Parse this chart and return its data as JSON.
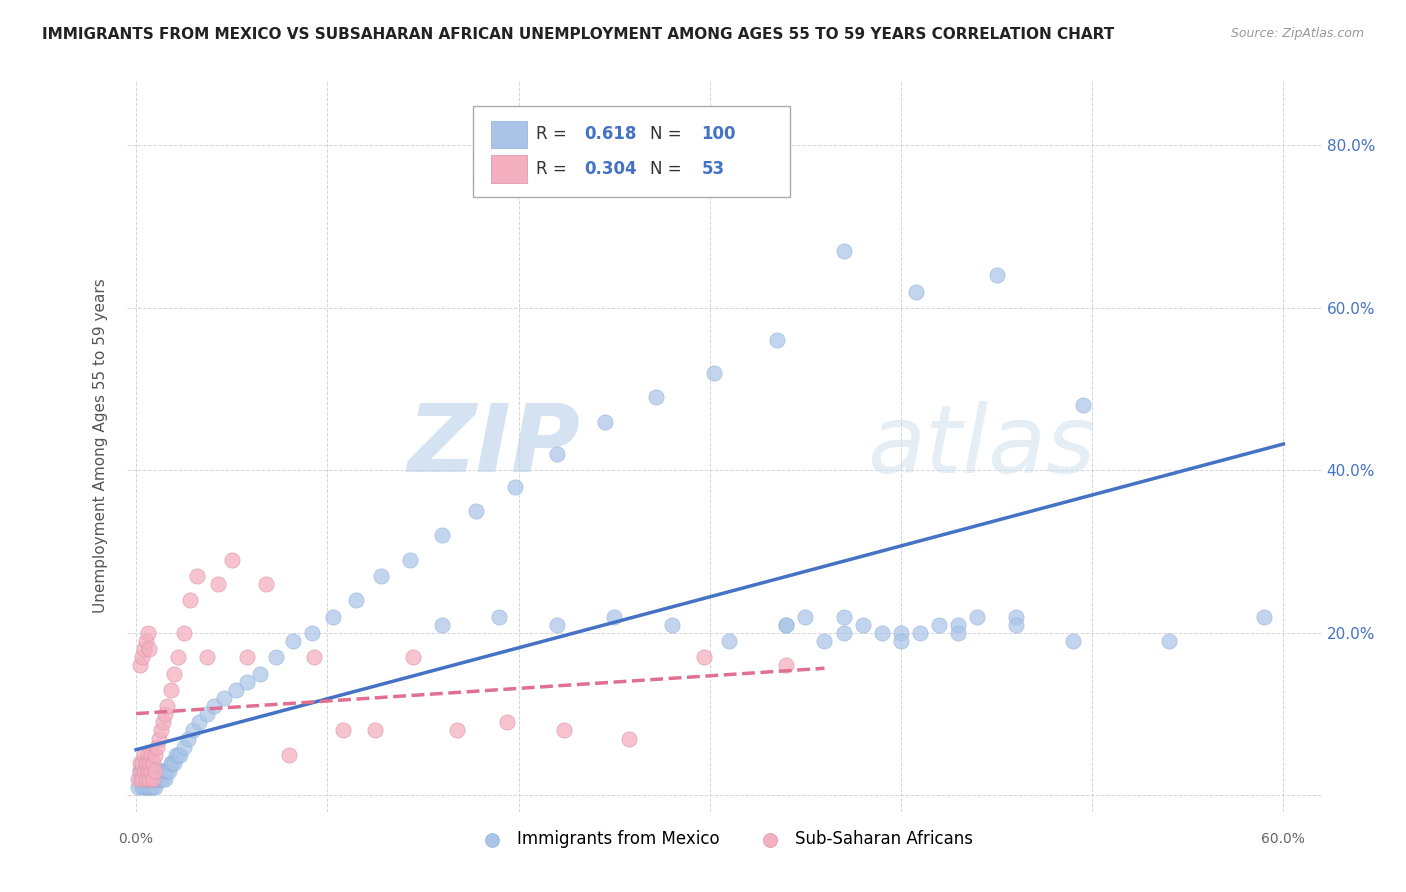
{
  "title": "IMMIGRANTS FROM MEXICO VS SUBSAHARAN AFRICAN UNEMPLOYMENT AMONG AGES 55 TO 59 YEARS CORRELATION CHART",
  "source": "Source: ZipAtlas.com",
  "ylabel": "Unemployment Among Ages 55 to 59 years",
  "xlim": [
    -0.005,
    0.62
  ],
  "ylim": [
    -0.02,
    0.88
  ],
  "xticks": [
    0.0,
    0.1,
    0.2,
    0.3,
    0.4,
    0.5,
    0.6
  ],
  "xticklabels": [
    "0.0%",
    "",
    "",
    "",
    "",
    "",
    "60.0%"
  ],
  "yticks": [
    0.0,
    0.2,
    0.4,
    0.6,
    0.8
  ],
  "yticklabels": [
    "",
    "20.0%",
    "40.0%",
    "60.0%",
    "80.0%"
  ],
  "legend_R1": "0.618",
  "legend_N1": "100",
  "legend_R2": "0.304",
  "legend_N2": "53",
  "color_blue": "#aac4e8",
  "color_pink": "#f4afc0",
  "color_blue_text": "#4472c4",
  "line_blue": "#4472c4",
  "line_pink": "#e07090",
  "watermark_zip": "ZIP",
  "watermark_atlas": "atlas",
  "watermark_color": "#d0e4f5",
  "watermark_color2": "#c8d8e8",
  "background_color": "#ffffff",
  "grid_color": "#cccccc",
  "blue_x": [
    0.001,
    0.002,
    0.002,
    0.003,
    0.003,
    0.003,
    0.004,
    0.004,
    0.004,
    0.005,
    0.005,
    0.005,
    0.006,
    0.006,
    0.006,
    0.007,
    0.007,
    0.007,
    0.008,
    0.008,
    0.008,
    0.009,
    0.009,
    0.009,
    0.01,
    0.01,
    0.01,
    0.011,
    0.011,
    0.012,
    0.012,
    0.013,
    0.013,
    0.014,
    0.014,
    0.015,
    0.015,
    0.016,
    0.017,
    0.018,
    0.019,
    0.02,
    0.021,
    0.022,
    0.023,
    0.025,
    0.027,
    0.03,
    0.033,
    0.037,
    0.041,
    0.046,
    0.052,
    0.058,
    0.065,
    0.073,
    0.082,
    0.092,
    0.103,
    0.115,
    0.128,
    0.143,
    0.16,
    0.178,
    0.198,
    0.22,
    0.245,
    0.272,
    0.302,
    0.335,
    0.37,
    0.408,
    0.45,
    0.495,
    0.54,
    0.59,
    0.16,
    0.19,
    0.22,
    0.25,
    0.28,
    0.31,
    0.34,
    0.37,
    0.4,
    0.43,
    0.46,
    0.49,
    0.34,
    0.37,
    0.4,
    0.43,
    0.46,
    0.35,
    0.38,
    0.41,
    0.44,
    0.36,
    0.39,
    0.42
  ],
  "blue_y": [
    0.01,
    0.02,
    0.03,
    0.01,
    0.02,
    0.03,
    0.01,
    0.02,
    0.03,
    0.01,
    0.02,
    0.03,
    0.01,
    0.02,
    0.03,
    0.01,
    0.02,
    0.03,
    0.01,
    0.02,
    0.03,
    0.01,
    0.02,
    0.03,
    0.01,
    0.02,
    0.03,
    0.02,
    0.03,
    0.02,
    0.03,
    0.02,
    0.03,
    0.02,
    0.03,
    0.02,
    0.03,
    0.03,
    0.03,
    0.04,
    0.04,
    0.04,
    0.05,
    0.05,
    0.05,
    0.06,
    0.07,
    0.08,
    0.09,
    0.1,
    0.11,
    0.12,
    0.13,
    0.14,
    0.15,
    0.17,
    0.19,
    0.2,
    0.22,
    0.24,
    0.27,
    0.29,
    0.32,
    0.35,
    0.38,
    0.42,
    0.46,
    0.49,
    0.52,
    0.56,
    0.67,
    0.62,
    0.64,
    0.48,
    0.19,
    0.22,
    0.21,
    0.22,
    0.21,
    0.22,
    0.21,
    0.19,
    0.21,
    0.22,
    0.2,
    0.21,
    0.22,
    0.19,
    0.21,
    0.2,
    0.19,
    0.2,
    0.21,
    0.22,
    0.21,
    0.2,
    0.22,
    0.19,
    0.2,
    0.21
  ],
  "pink_x": [
    0.001,
    0.002,
    0.002,
    0.003,
    0.003,
    0.004,
    0.004,
    0.005,
    0.005,
    0.006,
    0.006,
    0.007,
    0.007,
    0.008,
    0.008,
    0.009,
    0.009,
    0.01,
    0.01,
    0.011,
    0.012,
    0.013,
    0.014,
    0.015,
    0.016,
    0.018,
    0.02,
    0.022,
    0.025,
    0.028,
    0.032,
    0.037,
    0.043,
    0.05,
    0.058,
    0.068,
    0.08,
    0.093,
    0.108,
    0.125,
    0.145,
    0.168,
    0.194,
    0.224,
    0.258,
    0.297,
    0.34,
    0.002,
    0.003,
    0.004,
    0.005,
    0.006,
    0.007
  ],
  "pink_y": [
    0.02,
    0.03,
    0.04,
    0.02,
    0.04,
    0.03,
    0.05,
    0.02,
    0.04,
    0.03,
    0.05,
    0.02,
    0.04,
    0.03,
    0.05,
    0.02,
    0.04,
    0.03,
    0.05,
    0.06,
    0.07,
    0.08,
    0.09,
    0.1,
    0.11,
    0.13,
    0.15,
    0.17,
    0.2,
    0.24,
    0.27,
    0.17,
    0.26,
    0.29,
    0.17,
    0.26,
    0.05,
    0.17,
    0.08,
    0.08,
    0.17,
    0.08,
    0.09,
    0.08,
    0.07,
    0.17,
    0.16,
    0.16,
    0.17,
    0.18,
    0.19,
    0.2,
    0.18
  ]
}
